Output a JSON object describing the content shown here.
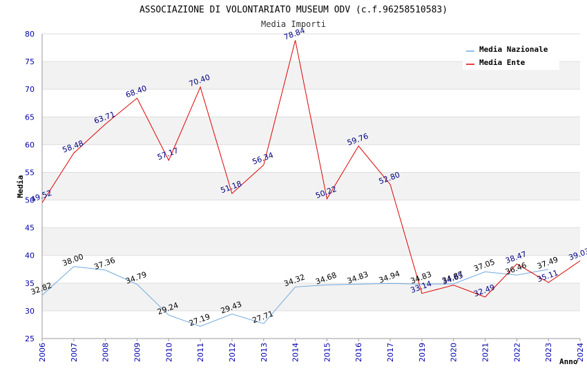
{
  "chart_data": {
    "type": "line",
    "title": "ASSOCIAZIONE DI VOLONTARIATO MUSEUM ODV (c.f.96258510583)",
    "subtitle": "Media Importi",
    "xlabel": "Anno",
    "ylabel": "Media",
    "categories": [
      "2006",
      "2007",
      "2008",
      "2009",
      "2010",
      "2011",
      "2012",
      "2013",
      "2014",
      "2015",
      "2016",
      "2017",
      "2019",
      "2020",
      "2021",
      "2022",
      "2023",
      "2024"
    ],
    "ylim": [
      25,
      80
    ],
    "yticks": [
      "25",
      "30",
      "35",
      "40",
      "45",
      "50",
      "55",
      "60",
      "65",
      "70",
      "75",
      "80"
    ],
    "grid": true,
    "legend_position": "top-right",
    "series": [
      {
        "name": "Media Nazionale",
        "color": "#6fa8dc",
        "values": [
          32.82,
          38.0,
          37.36,
          34.79,
          29.24,
          27.19,
          29.43,
          27.71,
          34.32,
          34.68,
          34.83,
          34.94,
          34.83,
          34.87,
          37.05,
          36.46,
          37.49,
          null
        ],
        "labels": [
          "32.82",
          "38.00",
          "37.36",
          "34.79",
          "29.24",
          "27.19",
          "29.43",
          "27.71",
          "34.32",
          "34.68",
          "34.83",
          "34.94",
          "34.83",
          "34.87",
          "37.05",
          "36.46",
          "37.49",
          ""
        ]
      },
      {
        "name": "Media Ente",
        "color": "#dd0000",
        "values": [
          49.52,
          58.48,
          63.71,
          68.4,
          57.17,
          70.4,
          51.18,
          56.34,
          78.84,
          50.22,
          59.76,
          52.8,
          33.14,
          34.65,
          32.49,
          38.47,
          35.11,
          39.03
        ],
        "labels": [
          "49.52",
          "58.48",
          "63.71",
          "68.40",
          "57.17",
          "70.40",
          "51.18",
          "56.34",
          "78.84",
          "50.22",
          "59.76",
          "52.80",
          "33.14",
          "34.65",
          "32.49",
          "38.47",
          "35.11",
          "39.03"
        ]
      }
    ]
  }
}
